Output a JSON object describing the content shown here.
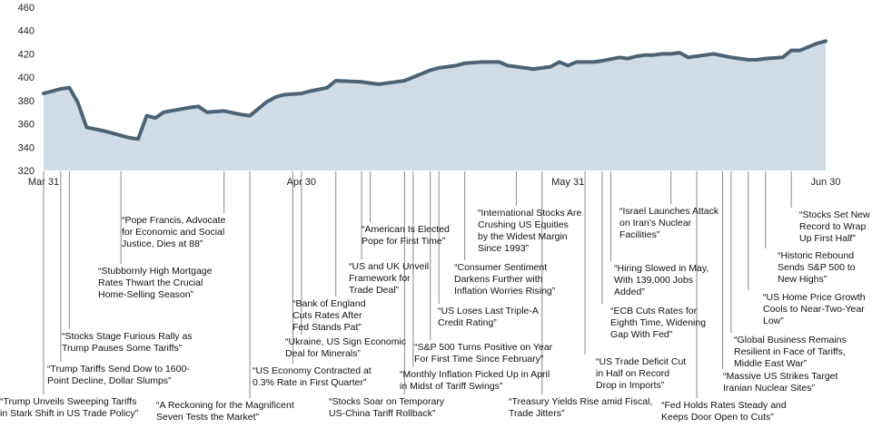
{
  "chart_data": {
    "type": "area",
    "title": "",
    "xlabel": "",
    "ylabel": "",
    "ylim": [
      320,
      460
    ],
    "yticks": [
      320,
      340,
      360,
      380,
      400,
      420,
      440,
      460
    ],
    "xticks": [
      {
        "day": 0,
        "label": "Mar 31"
      },
      {
        "day": 30,
        "label": "Apr 30"
      },
      {
        "day": 61,
        "label": "May 31"
      },
      {
        "day": 91,
        "label": "Jun 30"
      }
    ],
    "day_range": [
      0,
      91
    ],
    "colors": {
      "fill": "#d0dde7",
      "line": "#4a6476"
    },
    "series": [
      {
        "points": [
          [
            0,
            386
          ],
          [
            2,
            390
          ],
          [
            3,
            391
          ],
          [
            4,
            378
          ],
          [
            5,
            357
          ],
          [
            7,
            354
          ],
          [
            9,
            350
          ],
          [
            10,
            348
          ],
          [
            11,
            347
          ],
          [
            12,
            367
          ],
          [
            13,
            365
          ],
          [
            14,
            370
          ],
          [
            17,
            374
          ],
          [
            18,
            375
          ],
          [
            19,
            370
          ],
          [
            21,
            371
          ],
          [
            23,
            368
          ],
          [
            24,
            367
          ],
          [
            26,
            379
          ],
          [
            27,
            383
          ],
          [
            28,
            385
          ],
          [
            30,
            386
          ],
          [
            31,
            388
          ],
          [
            33,
            391
          ],
          [
            34,
            397
          ],
          [
            37,
            396
          ],
          [
            38,
            395
          ],
          [
            39,
            394
          ],
          [
            41,
            396
          ],
          [
            42,
            397
          ],
          [
            44,
            403
          ],
          [
            45,
            406
          ],
          [
            46,
            408
          ],
          [
            47,
            409
          ],
          [
            48,
            410
          ],
          [
            49,
            412
          ],
          [
            51,
            413
          ],
          [
            52,
            413
          ],
          [
            53,
            413
          ],
          [
            54,
            410
          ],
          [
            56,
            408
          ],
          [
            57,
            407
          ],
          [
            58,
            408
          ],
          [
            59,
            409
          ],
          [
            60,
            413
          ],
          [
            61,
            410
          ],
          [
            62,
            413
          ],
          [
            63,
            413
          ],
          [
            64,
            413
          ],
          [
            65,
            414
          ],
          [
            67,
            417
          ],
          [
            68,
            416
          ],
          [
            69,
            418
          ],
          [
            70,
            419
          ],
          [
            71,
            419
          ],
          [
            72,
            420
          ],
          [
            73,
            420
          ],
          [
            74,
            421
          ],
          [
            75,
            417
          ],
          [
            76,
            418
          ],
          [
            77,
            419
          ],
          [
            78,
            420
          ],
          [
            80,
            417
          ],
          [
            81,
            416
          ],
          [
            82,
            415
          ],
          [
            83,
            415
          ],
          [
            84,
            416
          ],
          [
            86,
            417
          ],
          [
            87,
            423
          ],
          [
            88,
            423
          ],
          [
            89,
            426
          ],
          [
            90,
            429
          ],
          [
            91,
            431
          ]
        ]
      }
    ],
    "annotations": [
      {
        "day": 0,
        "lines": [
          "“Trump Unveils Sweeping Tariffs",
          "in Stark Shift in US Trade Policy”"
        ]
      },
      {
        "day": 2,
        "lines": [
          "“Trump Tariffs Send Dow to 1600-",
          "Point Decline, Dollar Slumps”"
        ]
      },
      {
        "day": 3,
        "lines": [
          "“Stocks Stage Furious Rally as",
          "Trump Pauses Some Tariffs”"
        ]
      },
      {
        "day": 9,
        "lines": [
          "“Stubbornly High Mortgage",
          "Rates Thwart the Crucial",
          "Home-Selling Season”"
        ]
      },
      {
        "day": 21,
        "lines": [
          "“Pope Francis, Advocate",
          "for Economic and Social",
          "Justice, Dies at 88”"
        ]
      },
      {
        "day": 24,
        "lines": [
          "“A Reckoning for the Magnificent",
          "Seven Tests the Market”"
        ]
      },
      {
        "day": 29,
        "lines": [
          "“US Economy Contracted at",
          "0.3% Rate in First Quarter”"
        ]
      },
      {
        "day": 30,
        "lines": [
          "“Ukraine, US Sign Economic",
          "Deal for Minerals”"
        ]
      },
      {
        "day": 34,
        "lines": [
          "“Bank of England",
          "Cuts Rates After",
          "Fed Stands Pat”"
        ]
      },
      {
        "day": 37,
        "lines": [
          "“US and UK Unveil",
          "Framework for",
          "Trade Deal”"
        ]
      },
      {
        "day": 38,
        "lines": [
          "“American Is Elected",
          "Pope for First Time”"
        ]
      },
      {
        "day": 42,
        "lines": [
          "“Stocks Soar on Temporary",
          "US-China Tariff Rollback”"
        ]
      },
      {
        "day": 43,
        "lines": [
          "“Monthly Inflation Picked Up in April",
          "in Midst of Tariff Swings”"
        ]
      },
      {
        "day": 45,
        "lines": [
          "“S&P 500 Turns Positive on Year",
          "For First Time Since February”"
        ]
      },
      {
        "day": 46,
        "lines": [
          "“US Loses Last Triple-A",
          "Credit Rating”"
        ]
      },
      {
        "day": 49,
        "lines": [
          "“Consumer Sentiment",
          "Darkens Further with",
          "Inflation Worries Rising”"
        ]
      },
      {
        "day": 55,
        "lines": [
          "“International Stocks Are",
          "Crushing US Equities",
          "by the Widest Margin",
          "Since 1993”"
        ]
      },
      {
        "day": 58,
        "lines": [
          "“Treasury Yields Rise amid Fiscal,",
          "Trade Jitters”"
        ]
      },
      {
        "day": 63,
        "lines": [
          "“US Trade Deficit Cut",
          "in Half on Record",
          "Drop in Imports”"
        ]
      },
      {
        "day": 65,
        "lines": [
          "“ECB Cuts Rates for",
          "Eighth Time, Widening",
          "Gap With Fed”"
        ]
      },
      {
        "day": 66,
        "lines": [
          "“Hiring Slowed in May,",
          "With 139,000 Jobs",
          "Added”"
        ]
      },
      {
        "day": 73,
        "lines": [
          "“Israel Launches Attack",
          "on Iran’s Nuclear",
          "Facilities”"
        ]
      },
      {
        "day": 76,
        "lines": [
          "“Fed Holds Rates Steady and",
          "Keeps Door Open to Cuts”"
        ]
      },
      {
        "day": 79,
        "lines": [
          "“Massive US Strikes Target",
          "Iranian Nuclear Sites”"
        ]
      },
      {
        "day": 80,
        "lines": [
          "“Global Business Remains",
          "Resilient in Face of Tariffs,",
          "Middle East War”"
        ]
      },
      {
        "day": 82,
        "lines": [
          "“US Home Price Growth",
          "Cools to Near-Two-Year",
          "Low”"
        ]
      },
      {
        "day": 84,
        "lines": [
          "“Historic Rebound",
          "Sends S&P 500 to",
          "New Highs”"
        ]
      },
      {
        "day": 87,
        "lines": [
          "“Stocks Set New",
          "Record to Wrap",
          "Up First Half”"
        ]
      }
    ]
  }
}
